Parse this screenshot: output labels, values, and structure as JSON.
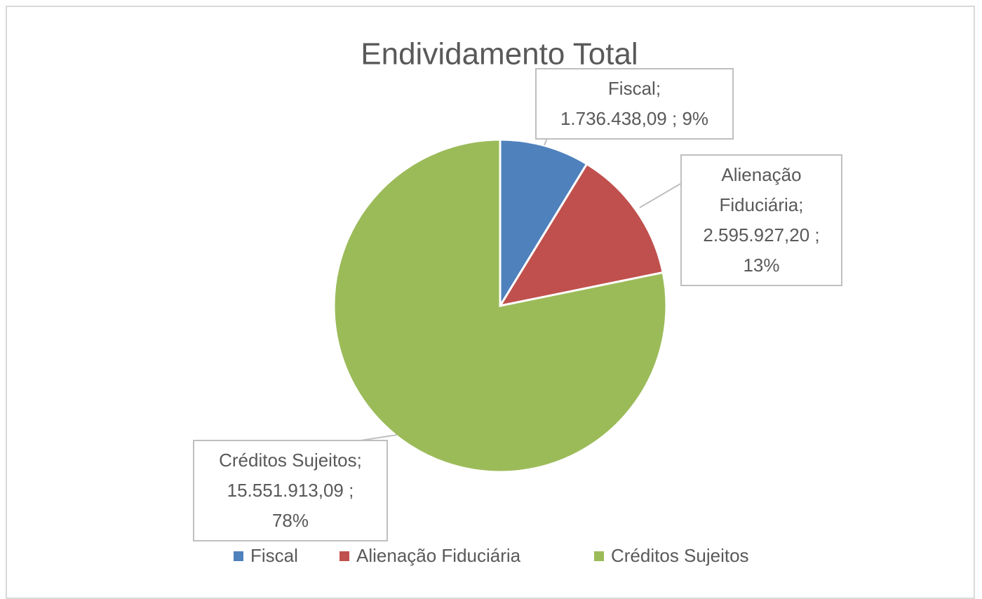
{
  "chart_data": {
    "type": "pie",
    "title": "Endividamento Total",
    "categories": [
      "Fiscal",
      "Alienação Fiduciária",
      "Créditos Sujeitos"
    ],
    "values": [
      1736438.09,
      2595927.2,
      15551913.09
    ],
    "value_labels": [
      "1.736.438,09",
      "2.595.927,20",
      "15.551.913,09"
    ],
    "percentages": [
      9,
      13,
      78
    ],
    "percentage_labels": [
      "9%",
      "13%",
      "78%"
    ],
    "label_separator": ";",
    "colors": [
      "#4f81bd",
      "#c0504d",
      "#9bbb59"
    ],
    "legend": "bottom"
  }
}
